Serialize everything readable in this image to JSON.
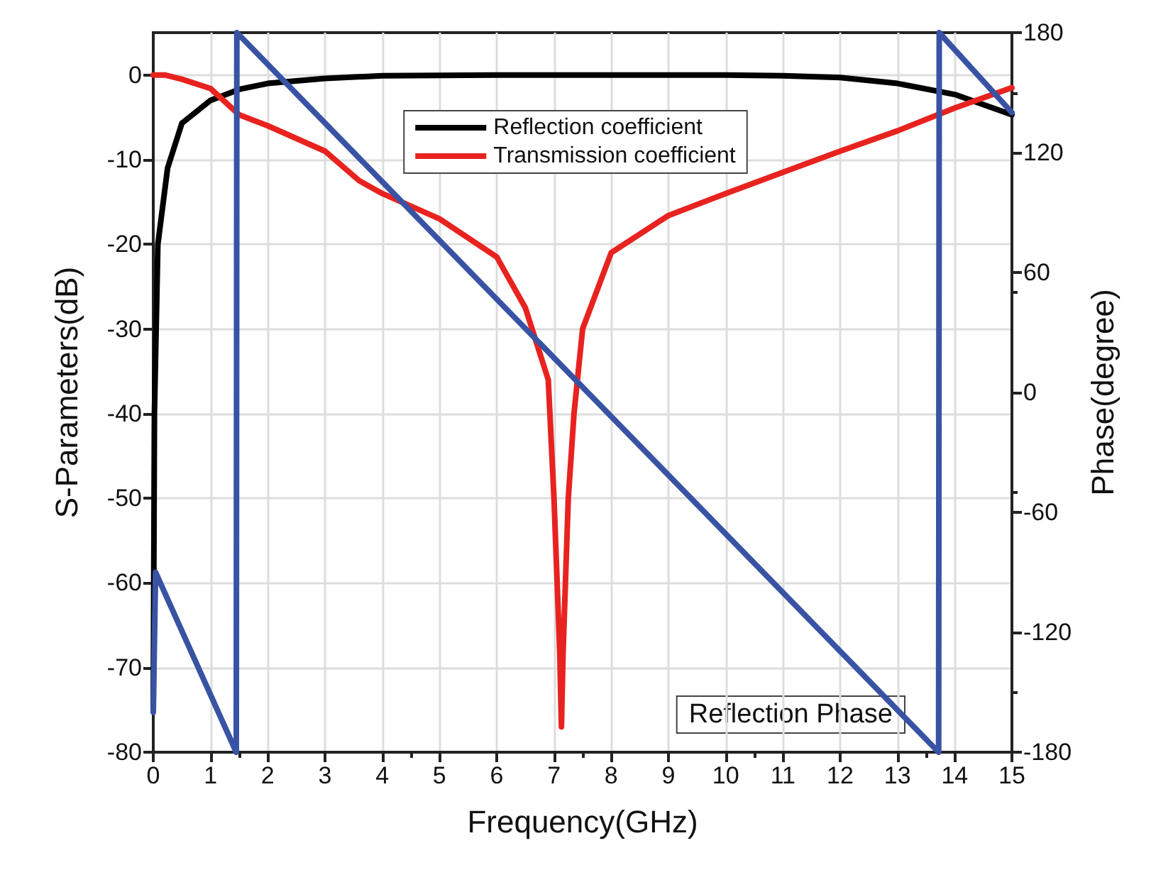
{
  "chart_data": {
    "type": "line",
    "xlabel": "Frequency(GHz)",
    "ylabel": "S-Parameters(dB)",
    "y2label": "Phase(degree)",
    "xlim": [
      0,
      15
    ],
    "xticks": [
      0,
      1,
      2,
      3,
      4,
      5,
      6,
      7,
      8,
      9,
      10,
      11,
      12,
      13,
      14,
      15
    ],
    "ylim": [
      -80,
      5
    ],
    "yticks": [
      -80,
      -70,
      -60,
      -50,
      -40,
      -30,
      -20,
      -10,
      0
    ],
    "y2lim": [
      -180,
      180
    ],
    "y2ticks": [
      -180,
      -120,
      -60,
      0,
      60,
      120,
      180
    ],
    "grid": true,
    "legend": "top",
    "line_style": "solid",
    "marker": "none",
    "series": [
      {
        "name": "Reflection coefficient",
        "color": "#000000",
        "x": [
          0,
          0.02,
          0.08,
          0.25,
          0.5,
          1,
          1.5,
          2,
          3,
          4,
          6,
          8,
          10,
          11,
          12,
          13,
          14,
          15
        ],
        "values": [
          -75,
          -40,
          -20,
          -11,
          -5.7,
          -3,
          -1.7,
          -1,
          -0.4,
          -0.1,
          0,
          0,
          0,
          -0.1,
          -0.3,
          -1,
          -2.3,
          -4.7
        ]
      },
      {
        "name": "Transmission coefficient",
        "color": "#e8231f",
        "x": [
          0,
          0.2,
          0.5,
          1,
          1.5,
          2,
          3,
          3.6,
          4,
          5,
          6,
          6.5,
          6.9,
          7,
          7.1,
          7.13,
          7.16,
          7.25,
          7.35,
          7.5,
          8,
          9,
          10,
          11,
          12,
          13,
          14,
          15
        ],
        "values": [
          0,
          0,
          -0.5,
          -1.6,
          -4.7,
          -6,
          -9,
          -12.5,
          -14,
          -17,
          -21.5,
          -27.5,
          -36,
          -50,
          -68,
          -77,
          -68,
          -50,
          -40,
          -30,
          -21,
          -16.6,
          -14,
          -11.5,
          -9,
          -6.6,
          -3.9,
          -1.5
        ]
      },
      {
        "name": "Reflection Phase",
        "color": "#3953a4",
        "axis": "y2",
        "x": [
          0,
          0.04,
          1.45,
          1.46,
          13.72,
          13.73,
          15
        ],
        "values": [
          -160,
          -90,
          -180,
          180,
          -180,
          180,
          140
        ]
      }
    ]
  }
}
